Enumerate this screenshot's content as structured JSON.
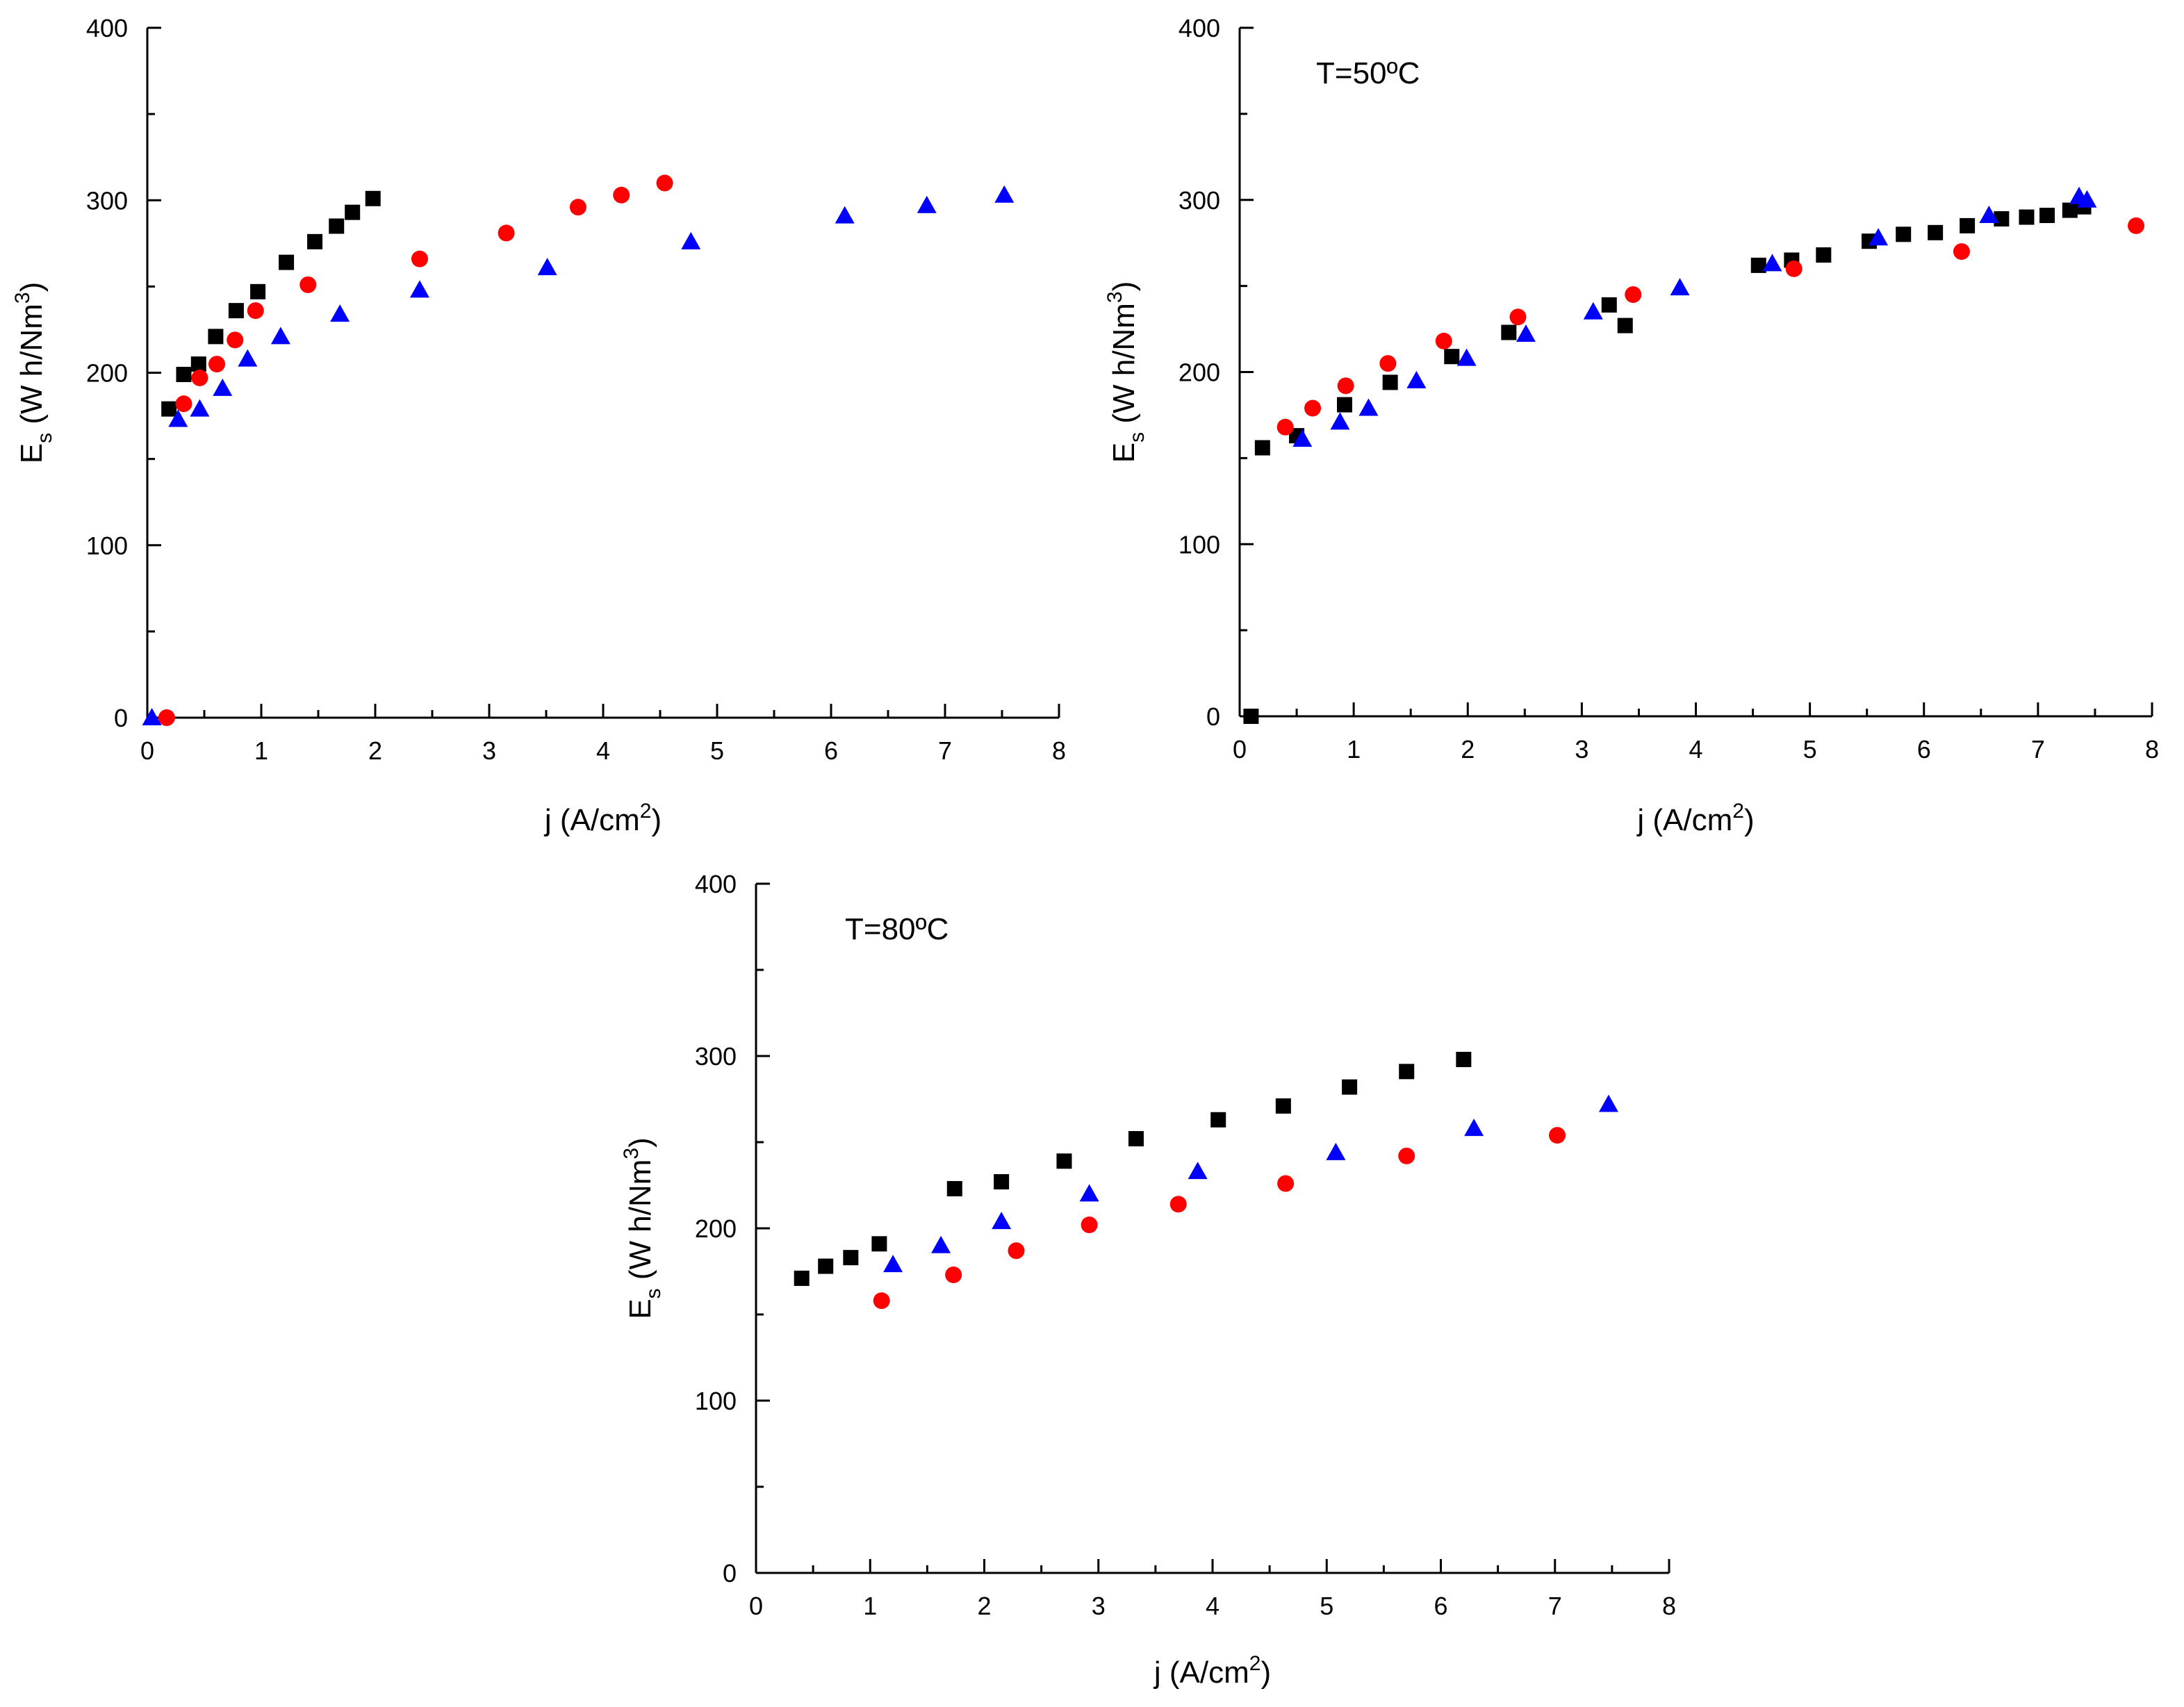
{
  "chart_data": [
    {
      "type": "scatter",
      "title": "",
      "annotation": "",
      "xlabel": {
        "main": "j (A/cm",
        "sup": "2",
        "end": ")"
      },
      "ylabel": {
        "main": "E",
        "sub": "s",
        "mid": " (W h/Nm",
        "sup": "3",
        "end": ")"
      },
      "xlim": [
        0,
        8
      ],
      "ylim": [
        0,
        400
      ],
      "xticks": [
        0,
        1,
        2,
        3,
        4,
        5,
        6,
        7,
        8
      ],
      "yticks": [
        0,
        100,
        200,
        300,
        400
      ],
      "series": [
        {
          "name": "black squares",
          "marker": "square",
          "color": "#000000",
          "x": [
            0.19,
            0.32,
            0.45,
            0.6,
            0.78,
            0.97,
            1.22,
            1.47,
            1.66,
            1.8,
            1.98
          ],
          "y": [
            179,
            199,
            205,
            221,
            236,
            247,
            264,
            276,
            285,
            293,
            301
          ]
        },
        {
          "name": "red circles",
          "marker": "circle",
          "color": "#ff0000",
          "x": [
            0.17,
            0.32,
            0.46,
            0.61,
            0.77,
            0.95,
            1.41,
            2.39,
            3.15,
            3.78,
            4.16,
            4.54
          ],
          "y": [
            0,
            182,
            197,
            205,
            219,
            236,
            251,
            266,
            281,
            296,
            303,
            310
          ]
        },
        {
          "name": "blue triangles",
          "marker": "triangle",
          "color": "#0000ff",
          "x": [
            0.04,
            0.27,
            0.46,
            0.66,
            0.88,
            1.17,
            1.69,
            2.39,
            3.51,
            4.77,
            6.12,
            6.84,
            7.52
          ],
          "y": [
            0,
            173,
            179,
            191,
            208,
            221,
            234,
            248,
            261,
            276,
            291,
            297,
            303
          ]
        }
      ]
    },
    {
      "type": "scatter",
      "title": "",
      "annotation": "T=50ºC",
      "xlabel": {
        "main": "j (A/cm",
        "sup": "2",
        "end": ")"
      },
      "ylabel": {
        "main": "E",
        "sub": "s",
        "mid": " (W h/Nm",
        "sup": "3",
        "end": ")"
      },
      "xlim": [
        0,
        8
      ],
      "ylim": [
        0,
        400
      ],
      "xticks": [
        0,
        1,
        2,
        3,
        4,
        5,
        6,
        7,
        8
      ],
      "yticks": [
        0,
        100,
        200,
        300,
        400
      ],
      "series": [
        {
          "name": "black squares",
          "marker": "square",
          "color": "#000000",
          "x": [
            0.1,
            0.2,
            0.5,
            0.92,
            1.32,
            1.86,
            2.36,
            3.24,
            3.38,
            4.55,
            4.84,
            5.12,
            5.52,
            5.82,
            6.1,
            6.38,
            6.68,
            6.9,
            7.08,
            7.28,
            7.4
          ],
          "y": [
            0,
            156,
            163,
            181,
            194,
            209,
            223,
            239,
            227,
            262,
            265,
            268,
            276,
            280,
            281,
            285,
            289,
            290,
            291,
            294,
            296
          ]
        },
        {
          "name": "red circles",
          "marker": "circle",
          "color": "#ff0000",
          "x": [
            0.4,
            0.64,
            0.93,
            1.3,
            1.79,
            2.44,
            3.45,
            4.86,
            6.33,
            7.86
          ],
          "y": [
            168,
            179,
            192,
            205,
            218,
            232,
            245,
            260,
            270,
            285
          ]
        },
        {
          "name": "blue triangles",
          "marker": "triangle",
          "color": "#0000ff",
          "x": [
            0.55,
            0.88,
            1.13,
            1.55,
            1.99,
            2.51,
            3.1,
            3.86,
            4.67,
            5.6,
            6.57,
            7.36,
            7.43
          ],
          "y": [
            161,
            171,
            179,
            195,
            208,
            222,
            235,
            249,
            263,
            278,
            291,
            302,
            300
          ]
        }
      ]
    },
    {
      "type": "scatter",
      "title": "",
      "annotation": "T=80ºC",
      "xlabel": {
        "main": "j (A/cm",
        "sup": "2",
        "end": ")"
      },
      "ylabel": {
        "main": "E",
        "sub": "s",
        "mid": " (W h/Nm",
        "sup": "3",
        "end": ")"
      },
      "xlim": [
        0,
        8
      ],
      "ylim": [
        0,
        400
      ],
      "xticks": [
        0,
        1,
        2,
        3,
        4,
        5,
        6,
        7,
        8
      ],
      "yticks": [
        0,
        100,
        200,
        300,
        400
      ],
      "series": [
        {
          "name": "black squares",
          "marker": "square",
          "color": "#000000",
          "x": [
            0.4,
            0.61,
            0.83,
            1.08,
            1.74,
            2.15,
            2.7,
            3.33,
            4.05,
            4.62,
            5.2,
            5.7,
            6.2
          ],
          "y": [
            171,
            178,
            183,
            191,
            223,
            227,
            239,
            252,
            263,
            271,
            282,
            291,
            298
          ]
        },
        {
          "name": "red circles",
          "marker": "circle",
          "color": "#ff0000",
          "x": [
            1.1,
            1.73,
            2.28,
            2.92,
            3.7,
            4.64,
            5.7,
            7.02
          ],
          "y": [
            158,
            173,
            187,
            202,
            214,
            226,
            242,
            254
          ]
        },
        {
          "name": "blue triangles",
          "marker": "triangle",
          "color": "#0000ff",
          "x": [
            1.2,
            1.62,
            2.15,
            2.92,
            3.87,
            5.08,
            6.29,
            7.47
          ],
          "y": [
            179,
            190,
            204,
            220,
            233,
            244,
            258,
            272
          ]
        }
      ]
    }
  ]
}
